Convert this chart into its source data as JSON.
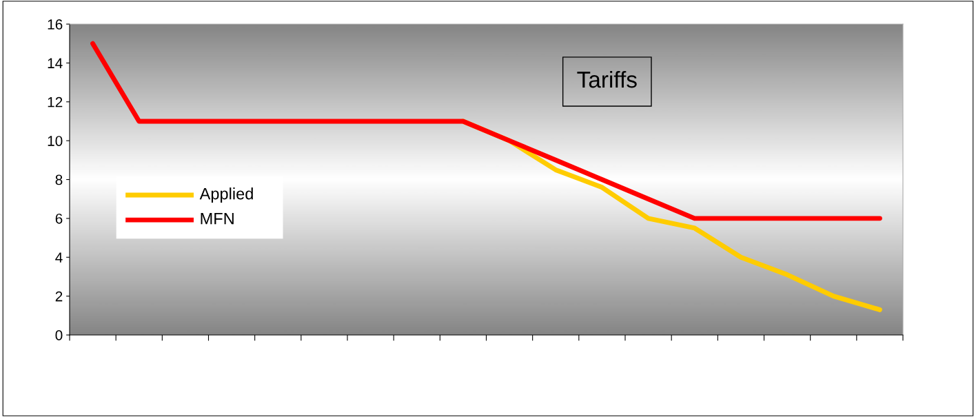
{
  "chart_data": {
    "type": "line",
    "title": "Tariffs",
    "categories": [
      null,
      null,
      null,
      null,
      null,
      null,
      null,
      null,
      null,
      null,
      null,
      null,
      null,
      null,
      null,
      null,
      null,
      null
    ],
    "series": [
      {
        "name": "Applied",
        "color": "#ffcc00",
        "values": [
          null,
          null,
          null,
          null,
          null,
          null,
          null,
          null,
          11,
          10,
          8.5,
          7.6,
          6,
          5.5,
          4,
          3.1,
          2,
          1.3
        ]
      },
      {
        "name": "MFN",
        "color": "#ff0000",
        "values": [
          15,
          11,
          11,
          11,
          11,
          11,
          11,
          11,
          11,
          10,
          9,
          8,
          7,
          6,
          6,
          6,
          6,
          6
        ]
      }
    ],
    "ylim": [
      0,
      16
    ],
    "yticks": [
      0,
      2,
      4,
      6,
      8,
      10,
      12,
      14,
      16
    ],
    "grid": false,
    "legend": "center left",
    "marker": "none",
    "line_style": "solid"
  }
}
